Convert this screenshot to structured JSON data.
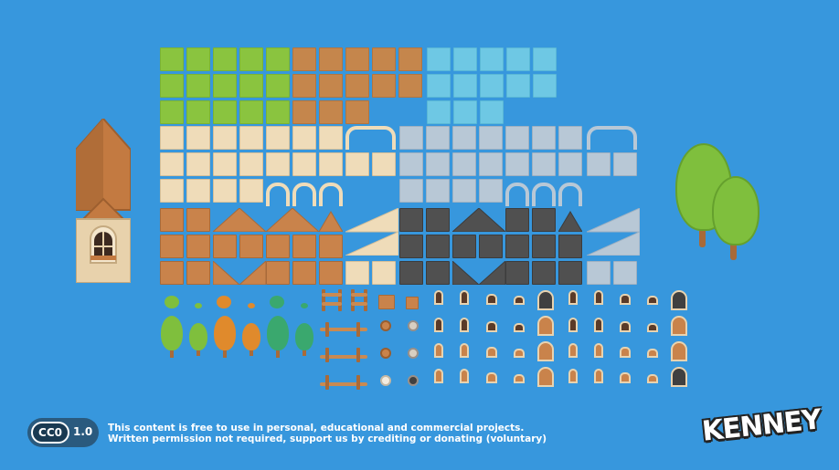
{
  "license": {
    "badge": "CC0",
    "version": "1.0",
    "line1": "This content is free to use in personal, educational and commercial projects.",
    "line2": "Written permission not required, support us by crediting or donating (voluntary)"
  },
  "brand": {
    "logo_text": "KENNEY"
  },
  "colors": {
    "background": "#3797dd",
    "grass": "#8ac43f",
    "dirt": "#c5864c",
    "water": "#6ec8e4",
    "sand": "#efdcb9",
    "stone": "#b8c8d6",
    "wood": "#c9834b",
    "slate": "#505050"
  }
}
